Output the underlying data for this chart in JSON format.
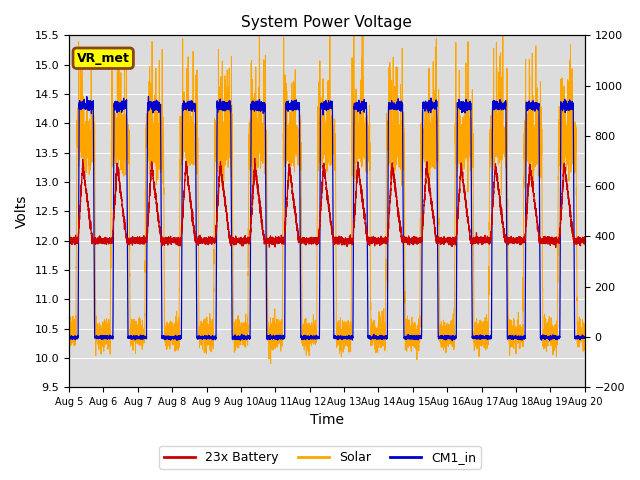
{
  "title": "System Power Voltage",
  "xlabel": "Time",
  "ylabel_left": "Volts",
  "xlim_end": 15,
  "ylim_left": [
    9.5,
    15.5
  ],
  "ylim_right": [
    -200,
    1200
  ],
  "xtick_labels": [
    "Aug 5",
    "Aug 6",
    "Aug 7",
    "Aug 8",
    "Aug 9",
    "Aug 10",
    "Aug 11",
    "Aug 12",
    "Aug 13",
    "Aug 14",
    "Aug 15",
    "Aug 16",
    "Aug 17",
    "Aug 18",
    "Aug 19",
    "Aug 20"
  ],
  "yticks_left": [
    9.5,
    10.0,
    10.5,
    11.0,
    11.5,
    12.0,
    12.5,
    13.0,
    13.5,
    14.0,
    14.5,
    15.0,
    15.5
  ],
  "yticks_right": [
    -200,
    0,
    200,
    400,
    600,
    800,
    1000,
    1200
  ],
  "battery_color": "#CC0000",
  "solar_color": "#FFA500",
  "cm1_color": "#0000CC",
  "background_color": "#DCDCDC",
  "annotation_text": "VR_met",
  "annotation_bg": "#FFFF00",
  "annotation_border": "#8B4513",
  "legend_labels": [
    "23x Battery",
    "Solar",
    "CM1_in"
  ]
}
